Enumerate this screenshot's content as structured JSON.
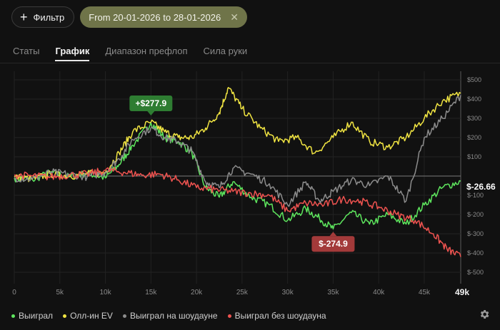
{
  "toolbar": {
    "filter_label": "Фильтр",
    "date_range": "From 20-01-2026 to 28-01-2026"
  },
  "tabs": [
    {
      "label": "Статы",
      "active": false
    },
    {
      "label": "График",
      "active": true
    },
    {
      "label": "Диапазон префлоп",
      "active": false
    },
    {
      "label": "Сила руки",
      "active": false
    }
  ],
  "colors": {
    "green": "#5ee65e",
    "yellow": "#f0e442",
    "gray": "#8c8c8c",
    "red": "#ef5350",
    "badge_green": "#2e7d32",
    "badge_red": "#a33a3a"
  },
  "chart_data": {
    "type": "line",
    "x_label_max": "49k",
    "xlim": [
      0,
      49000
    ],
    "ylim": [
      -500,
      500
    ],
    "x_ticks": [
      {
        "value": 0,
        "label": "0"
      },
      {
        "value": 5000,
        "label": "5k"
      },
      {
        "value": 10000,
        "label": "10k"
      },
      {
        "value": 15000,
        "label": "15k"
      },
      {
        "value": 20000,
        "label": "20k"
      },
      {
        "value": 25000,
        "label": "25k"
      },
      {
        "value": 30000,
        "label": "30k"
      },
      {
        "value": 35000,
        "label": "35k"
      },
      {
        "value": 40000,
        "label": "40k"
      },
      {
        "value": 45000,
        "label": "45k"
      }
    ],
    "y_ticks": [
      {
        "value": 500,
        "label": "$500"
      },
      {
        "value": 400,
        "label": "$400"
      },
      {
        "value": 300,
        "label": "$300"
      },
      {
        "value": 200,
        "label": "$200"
      },
      {
        "value": 100,
        "label": "$100"
      },
      {
        "value": -100,
        "label": "$-100"
      },
      {
        "value": -200,
        "label": "$-200"
      },
      {
        "value": -300,
        "label": "$-300"
      },
      {
        "value": -400,
        "label": "$-400"
      },
      {
        "value": -500,
        "label": "$-500"
      }
    ],
    "current_label": "$-26.66",
    "current_value": -26.66,
    "max_annotation": {
      "label": "+$277.9",
      "x": 15000,
      "y": 277.9
    },
    "min_annotation": {
      "label": "$-274.9",
      "x": 35000,
      "y": -274.9
    },
    "series": [
      {
        "name": "Выиграл",
        "color": "#5ee65e",
        "x": [
          0,
          2000,
          4000,
          6000,
          8000,
          10000,
          11500,
          13000,
          15000,
          16500,
          18000,
          19500,
          21000,
          22500,
          24000,
          26000,
          28000,
          30000,
          32000,
          33500,
          35000,
          37000,
          39000,
          41000,
          43000,
          45000,
          47000,
          49000
        ],
        "y": [
          -10,
          -20,
          20,
          -5,
          15,
          -10,
          60,
          160,
          277.9,
          200,
          180,
          120,
          -60,
          -110,
          -30,
          -110,
          -150,
          -230,
          -170,
          -220,
          -274.9,
          -190,
          -250,
          -200,
          -250,
          -150,
          -60,
          -26.66
        ]
      },
      {
        "name": "Олл-ин EV",
        "color": "#f0e442",
        "x": [
          0,
          2000,
          4000,
          6000,
          8000,
          10000,
          11500,
          13000,
          15000,
          16500,
          18000,
          19500,
          21000,
          22500,
          23500,
          25000,
          27000,
          29000,
          31000,
          33000,
          35000,
          37000,
          39000,
          41000,
          43000,
          45000,
          47000,
          49000
        ],
        "y": [
          -5,
          -15,
          10,
          0,
          10,
          20,
          120,
          230,
          280,
          230,
          200,
          200,
          250,
          330,
          460,
          350,
          250,
          180,
          200,
          120,
          200,
          280,
          180,
          150,
          200,
          300,
          390,
          430
        ]
      },
      {
        "name": "Выиграл на шоудауне",
        "color": "#8c8c8c",
        "x": [
          0,
          2000,
          4000,
          6000,
          8000,
          10000,
          11500,
          13000,
          15000,
          16500,
          18000,
          19500,
          21000,
          22500,
          24000,
          26000,
          28000,
          30000,
          32000,
          33500,
          35000,
          37000,
          39000,
          41000,
          43000,
          45000,
          47000,
          49000
        ],
        "y": [
          -10,
          -15,
          20,
          10,
          -5,
          20,
          90,
          190,
          250,
          200,
          180,
          130,
          -30,
          -60,
          40,
          10,
          -40,
          -150,
          -30,
          -130,
          -80,
          -20,
          -50,
          0,
          -130,
          200,
          300,
          420
        ]
      },
      {
        "name": "Выиграл без шоудауна",
        "color": "#ef5350",
        "x": [
          0,
          2000,
          4000,
          6000,
          8000,
          10000,
          12000,
          14000,
          16000,
          18000,
          20000,
          22000,
          24000,
          26000,
          28000,
          30000,
          32000,
          34000,
          36000,
          38000,
          40000,
          42000,
          44000,
          46000,
          47500,
          49000
        ],
        "y": [
          5,
          0,
          -5,
          5,
          10,
          30,
          20,
          5,
          10,
          -20,
          -60,
          -70,
          -80,
          -90,
          -100,
          -180,
          -140,
          -150,
          -120,
          -130,
          -160,
          -200,
          -230,
          -300,
          -380,
          -420
        ]
      }
    ]
  },
  "legend": [
    {
      "label": "Выиграл",
      "color": "#5ee65e"
    },
    {
      "label": "Олл-ин EV",
      "color": "#f0e442"
    },
    {
      "label": "Выиграл на шоудауне",
      "color": "#8c8c8c"
    },
    {
      "label": "Выиграл без шоудауна",
      "color": "#ef5350"
    }
  ]
}
